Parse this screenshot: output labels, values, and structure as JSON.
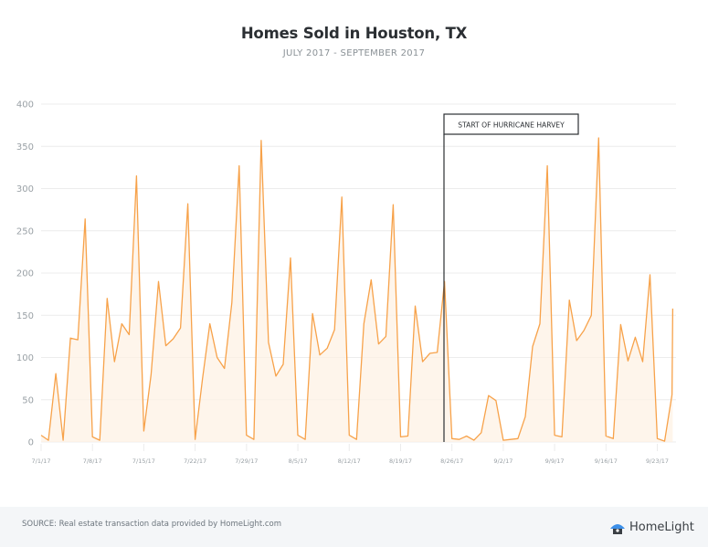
{
  "header": {
    "title": "Homes Sold in Houston, TX",
    "subtitle": "JULY 2017 - SEPTEMBER 2017"
  },
  "annotation": {
    "label": "START OF HURRICANE HARVEY",
    "date": "8/25/17"
  },
  "footer": {
    "source": "SOURCE: Real estate transaction data provided by HomeLight.com",
    "logo_text": "HomeLight",
    "logo_icon": "house-icon"
  },
  "colors": {
    "line": "#f7a24a",
    "fill": "#fdf1e4",
    "marker_line": "#2b2f33",
    "grid": "#ececec",
    "axis_text": "#9aa1a6",
    "logo_blue": "#3c8fe8",
    "logo_dark": "#3a3f44"
  },
  "chart_data": {
    "type": "area",
    "title": "Homes Sold in Houston, TX",
    "subtitle": "JULY 2017 - SEPTEMBER 2017",
    "xlabel": "",
    "ylabel": "",
    "ylim": [
      0,
      400
    ],
    "yticks": [
      0,
      50,
      100,
      150,
      200,
      250,
      300,
      350,
      400
    ],
    "xticks": [
      "7/1/17",
      "7/8/17",
      "7/15/17",
      "7/22/17",
      "7/29/17",
      "8/5/17",
      "8/12/17",
      "8/19/17",
      "8/26/17",
      "9/2/17",
      "9/9/17",
      "9/16/17",
      "9/23/17"
    ],
    "grid": true,
    "legend": "none",
    "annotations": [
      {
        "text": "START OF HURRICANE HARVEY",
        "x": "8/25/17"
      }
    ],
    "start_date": "7/1/17",
    "x": [
      "7/1",
      "7/2",
      "7/3",
      "7/4",
      "7/5",
      "7/6",
      "7/7",
      "7/8",
      "7/9",
      "7/10",
      "7/11",
      "7/12",
      "7/13",
      "7/14",
      "7/15",
      "7/16",
      "7/17",
      "7/18",
      "7/19",
      "7/20",
      "7/21",
      "7/22",
      "7/23",
      "7/24",
      "7/25",
      "7/26",
      "7/27",
      "7/28",
      "7/29",
      "7/30",
      "7/31",
      "8/1",
      "8/2",
      "8/3",
      "8/4",
      "8/5",
      "8/6",
      "8/7",
      "8/8",
      "8/9",
      "8/10",
      "8/11",
      "8/12",
      "8/13",
      "8/14",
      "8/15",
      "8/16",
      "8/17",
      "8/18",
      "8/19",
      "8/20",
      "8/21",
      "8/22",
      "8/23",
      "8/24",
      "8/25",
      "8/26",
      "8/27",
      "8/28",
      "8/29",
      "8/30",
      "8/31",
      "9/1",
      "9/2",
      "9/3",
      "9/4",
      "9/5",
      "9/6",
      "9/7",
      "9/8",
      "9/9",
      "9/10",
      "9/11",
      "9/12",
      "9/13",
      "9/14",
      "9/15",
      "9/16",
      "9/17",
      "9/18",
      "9/19",
      "9/20",
      "9/21",
      "9/22",
      "9/23",
      "9/24",
      "9/25",
      "9/26"
    ],
    "series": [
      {
        "name": "Homes Sold",
        "values": [
          8,
          2,
          81,
          2,
          123,
          121,
          264,
          6,
          2,
          170,
          95,
          140,
          127,
          315,
          13,
          80,
          190,
          114,
          122,
          135,
          282,
          3,
          75,
          140,
          100,
          87,
          165,
          327,
          8,
          3,
          357,
          118,
          78,
          92,
          218,
          8,
          3,
          152,
          103,
          111,
          133,
          290,
          8,
          3,
          140,
          192,
          116,
          125,
          281,
          6,
          7,
          161,
          95,
          105,
          106,
          190,
          4,
          3,
          7,
          2,
          11,
          55,
          49,
          2,
          3,
          4,
          30,
          113,
          140,
          327,
          8,
          6,
          168,
          120,
          132,
          150,
          360,
          7,
          4,
          139,
          96,
          124,
          95,
          198,
          4,
          1,
          56,
          158
        ]
      }
    ]
  }
}
